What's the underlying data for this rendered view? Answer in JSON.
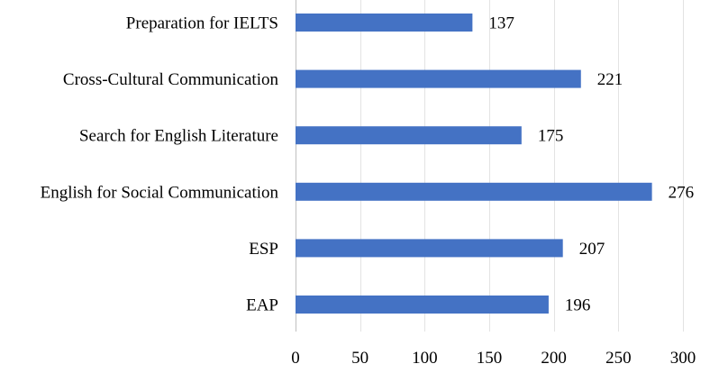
{
  "chart_data": {
    "type": "bar",
    "orientation": "horizontal",
    "categories": [
      "Preparation for IELTS",
      "Cross-Cultural Communication",
      "Search for English Literature",
      "English for Social Communication",
      "ESP",
      "EAP"
    ],
    "values": [
      137,
      221,
      175,
      276,
      207,
      196
    ],
    "xlim": [
      0,
      300
    ],
    "xticks": [
      0,
      50,
      100,
      150,
      200,
      250,
      300
    ],
    "grid": true,
    "bar_color": "#4472c4",
    "data_labels": true
  }
}
